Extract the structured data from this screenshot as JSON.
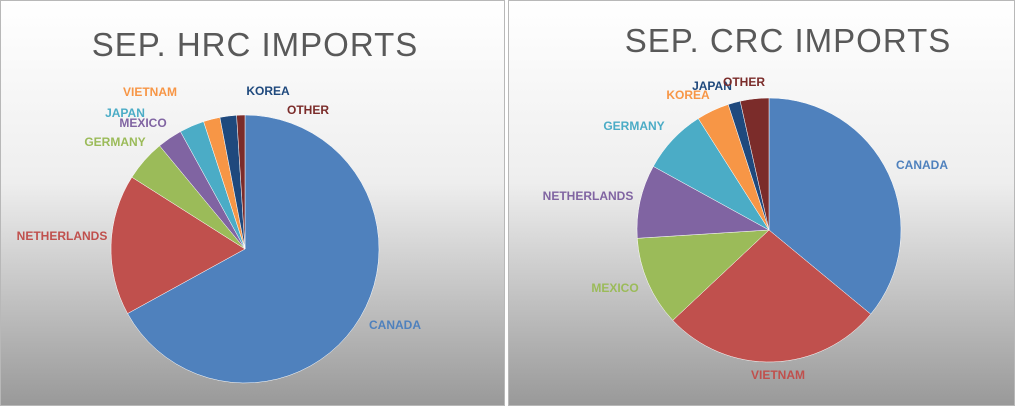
{
  "chart_data": [
    {
      "type": "pie",
      "title": "SEP. HRC IMPORTS",
      "categories": [
        "CANADA",
        "NETHERLANDS",
        "GERMANY",
        "MEXICO",
        "JAPAN",
        "VIETNAM",
        "KOREA",
        "OTHER"
      ],
      "values": [
        67,
        17,
        5,
        3,
        3,
        2,
        2,
        1
      ],
      "colors": [
        "#4f81bd",
        "#c0504d",
        "#9bbb59",
        "#8064a2",
        "#4bacc6",
        "#f79646",
        "#1f497d",
        "#7b2c2a"
      ]
    },
    {
      "type": "pie",
      "title": "SEP. CRC IMPORTS",
      "categories": [
        "CANADA",
        "VIETNAM",
        "MEXICO",
        "NETHERLANDS",
        "GERMANY",
        "KOREA",
        "JAPAN",
        "OTHER"
      ],
      "values": [
        36,
        27,
        11,
        9,
        8,
        4,
        1.5,
        3.5
      ],
      "colors": [
        "#4f81bd",
        "#c0504d",
        "#9bbb59",
        "#8064a2",
        "#4bacc6",
        "#f79646",
        "#1f497d",
        "#7b2c2a"
      ]
    }
  ]
}
